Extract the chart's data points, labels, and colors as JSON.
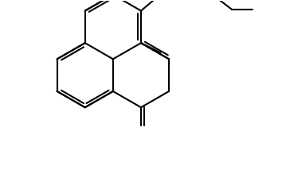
{
  "bg_color": "#ffffff",
  "line_color": "#000000",
  "line_width": 1.5,
  "figsize": [
    3.54,
    2.38
  ],
  "dpi": 100,
  "xlim": [
    -3.8,
    3.8
  ],
  "ylim": [
    -3.0,
    2.8
  ]
}
